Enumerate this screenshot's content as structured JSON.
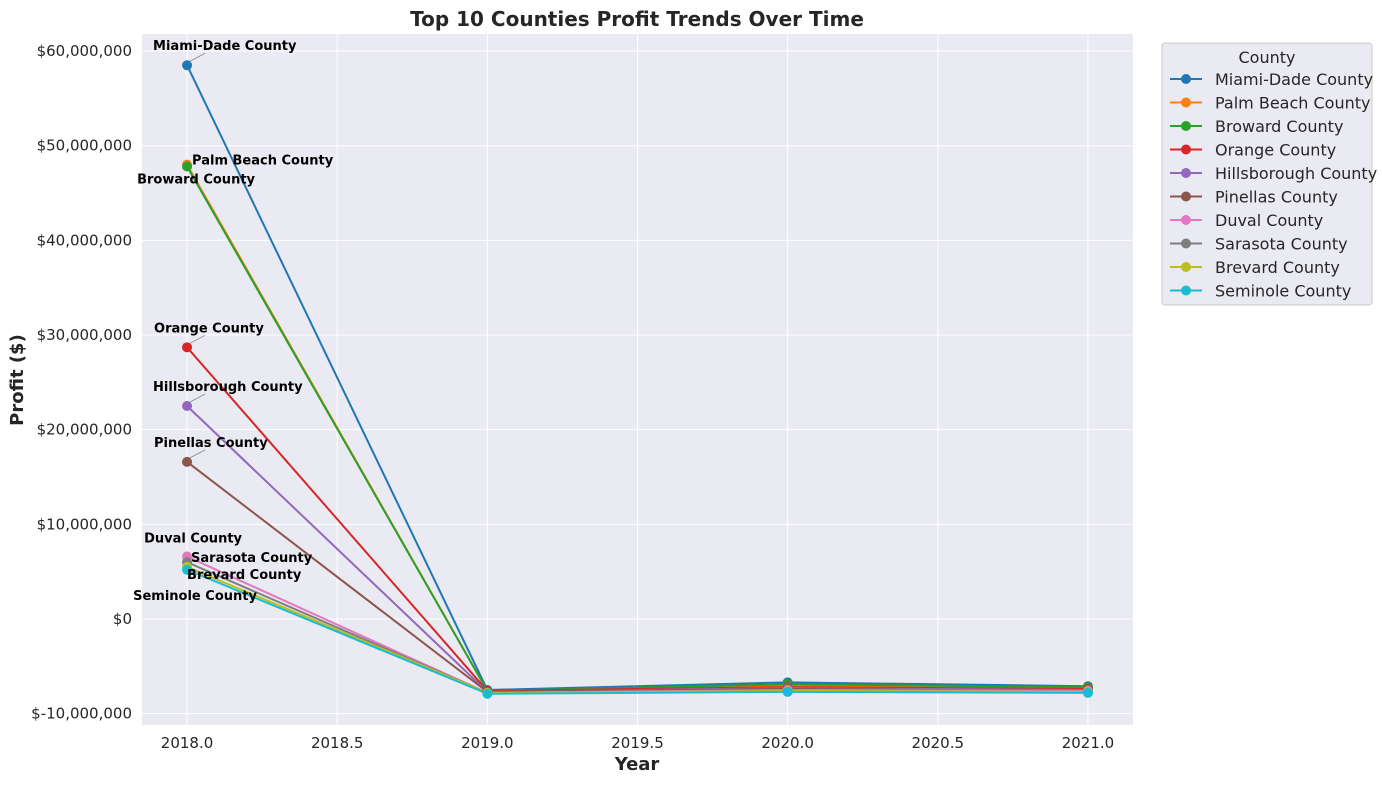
{
  "chart_data": {
    "type": "line",
    "title": "Top 10 Counties Profit Trends Over Time",
    "xlabel": "Year",
    "ylabel": "Profit ($)",
    "xlim": [
      2017.85,
      2021.15
    ],
    "ylim": [
      -11200000,
      61800000
    ],
    "x_ticks": [
      2018.0,
      2018.5,
      2019.0,
      2019.5,
      2020.0,
      2020.5,
      2021.0
    ],
    "x_tick_labels": [
      "2018.0",
      "2018.5",
      "2019.0",
      "2019.5",
      "2020.0",
      "2020.5",
      "2021.0"
    ],
    "y_ticks": [
      -10000000,
      0,
      10000000,
      20000000,
      30000000,
      40000000,
      50000000,
      60000000
    ],
    "y_tick_labels": [
      "$-10,000,000",
      "$0",
      "$10,000,000",
      "$20,000,000",
      "$30,000,000",
      "$40,000,000",
      "$50,000,000",
      "$60,000,000"
    ],
    "grid": true,
    "background": "#eaeaf2",
    "legend": {
      "title": "County",
      "placement": "outside-top-right"
    },
    "x": [
      2018,
      2019,
      2020,
      2021
    ],
    "series": [
      {
        "name": "Miami-Dade County",
        "color": "#1f77b4",
        "values": [
          58500000,
          -7500000,
          -6700000,
          -7100000
        ]
      },
      {
        "name": "Palm Beach County",
        "color": "#ff7f0e",
        "values": [
          48000000,
          -7600000,
          -7000000,
          -7300000
        ]
      },
      {
        "name": "Broward County",
        "color": "#2ca02c",
        "values": [
          47800000,
          -7600000,
          -6900000,
          -7200000
        ]
      },
      {
        "name": "Orange County",
        "color": "#d62728",
        "values": [
          28700000,
          -7600000,
          -7200000,
          -7400000
        ]
      },
      {
        "name": "Hillsborough County",
        "color": "#9467bd",
        "values": [
          22500000,
          -7700000,
          -7300000,
          -7500000
        ]
      },
      {
        "name": "Pinellas County",
        "color": "#8c564b",
        "values": [
          16600000,
          -7700000,
          -7400000,
          -7600000
        ]
      },
      {
        "name": "Duval County",
        "color": "#e377c2",
        "values": [
          6600000,
          -7800000,
          -7500000,
          -7600000
        ]
      },
      {
        "name": "Sarasota County",
        "color": "#7f7f7f",
        "values": [
          6000000,
          -7800000,
          -7600000,
          -7700000
        ]
      },
      {
        "name": "Brevard County",
        "color": "#bcbd22",
        "values": [
          5500000,
          -7800000,
          -7600000,
          -7700000
        ]
      },
      {
        "name": "Seminole County",
        "color": "#17becf",
        "values": [
          5200000,
          -7900000,
          -7700000,
          -7800000
        ]
      }
    ],
    "annotations": [
      {
        "text": "Miami-Dade County",
        "series": "Miami-Dade County",
        "x": 2018
      },
      {
        "text": "Palm Beach County",
        "series": "Palm Beach County",
        "x": 2018
      },
      {
        "text": "Broward County",
        "series": "Broward County",
        "x": 2018
      },
      {
        "text": "Orange County",
        "series": "Orange County",
        "x": 2018
      },
      {
        "text": "Hillsborough County",
        "series": "Hillsborough County",
        "x": 2018
      },
      {
        "text": "Pinellas County",
        "series": "Pinellas County",
        "x": 2018
      },
      {
        "text": "Duval County",
        "series": "Duval County",
        "x": 2018
      },
      {
        "text": "Sarasota County",
        "series": "Sarasota County",
        "x": 2018
      },
      {
        "text": "Brevard County",
        "series": "Brevard County",
        "x": 2018
      },
      {
        "text": "Seminole County",
        "series": "Seminole County",
        "x": 2018
      }
    ]
  }
}
